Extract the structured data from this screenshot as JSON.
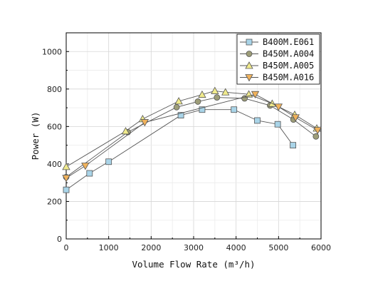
{
  "chart_data": {
    "type": "line",
    "title": "",
    "xlabel": "Volume Flow Rate (m³/h)",
    "ylabel": "Power (W)",
    "xlim": [
      0,
      6000
    ],
    "ylim": [
      0,
      1100
    ],
    "xticks": [
      0,
      1000,
      2000,
      3000,
      4000,
      5000,
      6000
    ],
    "yticks": [
      0,
      200,
      400,
      600,
      800,
      1000
    ],
    "grid": true,
    "legend_position": "top-right",
    "series": [
      {
        "name": "B400M.E061",
        "marker": "square",
        "color": "#a9d4e8",
        "x": [
          0,
          550,
          1000,
          2700,
          3200,
          3950,
          4500,
          4980,
          5340
        ],
        "y": [
          262,
          350,
          412,
          660,
          690,
          690,
          632,
          612,
          500
        ]
      },
      {
        "name": "B450M.A004",
        "marker": "circle",
        "color": "#9d9d78",
        "x": [
          0,
          1450,
          2600,
          3100,
          3550,
          4200,
          4800,
          5350,
          5880
        ],
        "y": [
          330,
          570,
          703,
          733,
          755,
          750,
          712,
          637,
          547
        ]
      },
      {
        "name": "B450M.A005",
        "marker": "triangle-up",
        "color": "#f0ea8c",
        "x": [
          0,
          1400,
          1800,
          2650,
          3200,
          3500,
          3750,
          4300,
          4850,
          5380,
          5900
        ],
        "y": [
          385,
          575,
          640,
          735,
          770,
          790,
          783,
          772,
          722,
          663,
          590
        ]
      },
      {
        "name": "B450M.A016",
        "marker": "triangle-down",
        "color": "#f0b25c",
        "x": [
          0,
          450,
          1850,
          4450,
          5000,
          5400,
          5920
        ],
        "y": [
          325,
          390,
          622,
          772,
          705,
          648,
          580
        ]
      }
    ]
  }
}
